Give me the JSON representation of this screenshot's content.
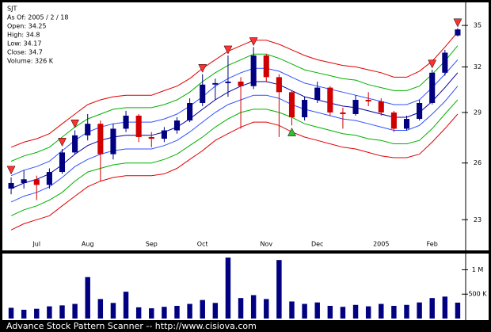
{
  "chart_data": [
    {
      "type": "candlestick",
      "log": true,
      "annotations": [
        "SJT",
        "As Of: 2005 / 2 / 18",
        "Open: 34.25",
        "High: 34.8",
        "Low: 34.17",
        "Close: 34.7",
        "Volume: 326 K"
      ],
      "categories": [
        null,
        null,
        "Jul",
        null,
        null,
        null,
        "Aug",
        null,
        null,
        null,
        null,
        "Sep",
        null,
        null,
        null,
        "Oct",
        null,
        null,
        null,
        null,
        "Nov",
        null,
        null,
        null,
        "Dec",
        null,
        null,
        null,
        null,
        "2005",
        null,
        null,
        null,
        "Feb",
        null,
        null
      ],
      "open": [
        24.6,
        24.9,
        25.1,
        24.8,
        25.5,
        26.6,
        27.6,
        28.3,
        26.5,
        28.0,
        28.8,
        27.5,
        27.4,
        27.9,
        28.5,
        29.6,
        30.8,
        30.9,
        31.0,
        30.7,
        32.8,
        31.3,
        30.3,
        28.7,
        29.8,
        30.6,
        29.0,
        28.9,
        29.8,
        29.7,
        29.0,
        28.0,
        28.6,
        29.6,
        31.6,
        34.25
      ],
      "high": [
        25.2,
        25.6,
        25.3,
        25.7,
        26.8,
        27.9,
        28.9,
        28.5,
        28.3,
        29.1,
        28.9,
        27.8,
        28.1,
        28.7,
        29.9,
        31.5,
        31.2,
        32.8,
        31.3,
        33.4,
        32.9,
        31.5,
        30.4,
        30.0,
        31.0,
        30.7,
        29.3,
        30.1,
        30.3,
        29.9,
        29.1,
        28.8,
        29.8,
        31.8,
        33.2,
        34.8
      ],
      "low": [
        24.3,
        24.6,
        24.0,
        24.6,
        25.4,
        26.5,
        27.3,
        25.0,
        26.2,
        27.8,
        27.2,
        26.9,
        27.2,
        27.7,
        28.4,
        29.4,
        29.8,
        30.0,
        28.0,
        30.5,
        31.0,
        27.5,
        28.2,
        28.5,
        29.6,
        28.8,
        28.0,
        28.8,
        29.4,
        28.8,
        27.8,
        27.9,
        28.5,
        29.5,
        31.4,
        34.17
      ],
      "close": [
        24.9,
        25.1,
        24.8,
        25.5,
        26.6,
        27.6,
        28.3,
        26.5,
        28.0,
        28.8,
        27.5,
        27.4,
        27.9,
        28.5,
        29.6,
        30.8,
        30.9,
        31.0,
        30.7,
        32.8,
        31.3,
        30.3,
        28.7,
        29.8,
        30.6,
        29.0,
        28.9,
        29.8,
        29.7,
        29.0,
        28.0,
        28.6,
        29.6,
        31.6,
        33.0,
        34.7
      ],
      "up_color": "#000080",
      "down_color": "#d00000",
      "bands": [
        {
          "color": "#e00000",
          "values": [
            22.5,
            22.8,
            23.0,
            23.2,
            23.7,
            24.2,
            24.7,
            25.0,
            25.2,
            25.3,
            25.3,
            25.3,
            25.4,
            25.7,
            26.2,
            26.7,
            27.3,
            27.7,
            28.1,
            28.4,
            28.4,
            28.2,
            27.8,
            27.5,
            27.3,
            27.1,
            26.9,
            26.8,
            26.6,
            26.4,
            26.3,
            26.3,
            26.5,
            27.2,
            28.0,
            28.9
          ]
        },
        {
          "color": "#00b000",
          "values": [
            23.2,
            23.5,
            23.7,
            24.0,
            24.4,
            25.0,
            25.5,
            25.7,
            25.9,
            26.0,
            26.0,
            26.0,
            26.2,
            26.5,
            27.0,
            27.5,
            28.1,
            28.6,
            29.0,
            29.2,
            29.2,
            29.0,
            28.7,
            28.3,
            28.1,
            27.9,
            27.7,
            27.6,
            27.4,
            27.3,
            27.1,
            27.1,
            27.3,
            28.0,
            28.9,
            29.8
          ]
        },
        {
          "color": "#3050ff",
          "values": [
            23.9,
            24.2,
            24.4,
            24.7,
            25.2,
            25.8,
            26.2,
            26.5,
            26.7,
            26.8,
            26.8,
            26.8,
            27.0,
            27.3,
            27.8,
            28.4,
            29.0,
            29.5,
            29.8,
            30.1,
            30.1,
            29.9,
            29.5,
            29.2,
            29.0,
            28.8,
            28.6,
            28.5,
            28.3,
            28.1,
            27.9,
            27.9,
            28.2,
            28.9,
            29.7,
            30.7
          ]
        },
        {
          "color": "#0000a0",
          "values": [
            24.6,
            24.9,
            25.1,
            25.4,
            25.9,
            26.5,
            27.0,
            27.3,
            27.5,
            27.6,
            27.6,
            27.6,
            27.8,
            28.1,
            28.6,
            29.2,
            29.8,
            30.3,
            30.7,
            31.0,
            31.0,
            30.8,
            30.4,
            30.0,
            29.8,
            29.6,
            29.4,
            29.3,
            29.1,
            28.9,
            28.7,
            28.7,
            29.0,
            29.7,
            30.6,
            31.6
          ]
        },
        {
          "color": "#3050ff",
          "values": [
            25.3,
            25.6,
            25.8,
            26.1,
            26.7,
            27.3,
            27.8,
            28.1,
            28.3,
            28.4,
            28.4,
            28.4,
            28.6,
            28.9,
            29.4,
            30.0,
            30.7,
            31.2,
            31.6,
            31.9,
            31.9,
            31.7,
            31.3,
            30.9,
            30.7,
            30.5,
            30.3,
            30.1,
            29.9,
            29.7,
            29.5,
            29.5,
            29.8,
            30.6,
            31.5,
            32.5
          ]
        },
        {
          "color": "#00b000",
          "values": [
            26.1,
            26.4,
            26.6,
            26.9,
            27.5,
            28.1,
            28.6,
            28.9,
            29.2,
            29.3,
            29.3,
            29.3,
            29.5,
            29.8,
            30.3,
            31.0,
            31.6,
            32.1,
            32.5,
            32.9,
            32.9,
            32.6,
            32.2,
            31.8,
            31.6,
            31.4,
            31.2,
            31.1,
            30.8,
            30.6,
            30.4,
            30.4,
            30.7,
            31.5,
            32.4,
            33.5
          ]
        },
        {
          "color": "#e00000",
          "values": [
            26.9,
            27.2,
            27.4,
            27.7,
            28.3,
            28.9,
            29.5,
            29.8,
            30.0,
            30.1,
            30.1,
            30.1,
            30.4,
            30.7,
            31.2,
            31.9,
            32.5,
            33.1,
            33.5,
            33.9,
            33.9,
            33.6,
            33.2,
            32.8,
            32.5,
            32.3,
            32.1,
            32.0,
            31.8,
            31.6,
            31.3,
            31.3,
            31.7,
            32.4,
            33.4,
            34.5
          ]
        }
      ],
      "sell_signals": {
        "color": "#ff3030",
        "values": [
          25.6,
          null,
          null,
          null,
          27.2,
          28.3,
          null,
          null,
          null,
          null,
          null,
          null,
          null,
          null,
          null,
          31.9,
          null,
          33.2,
          null,
          33.8,
          null,
          null,
          null,
          null,
          null,
          null,
          null,
          null,
          null,
          null,
          null,
          null,
          null,
          32.2,
          null,
          35.2
        ]
      },
      "buy_signals": {
        "color": "#30c030",
        "values": [
          null,
          null,
          null,
          null,
          null,
          null,
          null,
          null,
          null,
          null,
          null,
          null,
          null,
          null,
          null,
          null,
          null,
          null,
          null,
          null,
          null,
          null,
          27.8,
          null,
          null,
          null,
          null,
          null,
          null,
          null,
          null,
          null,
          null,
          null,
          null,
          null
        ]
      },
      "ylim": [
        21.6,
        36.6
      ],
      "yticks": [
        23,
        26,
        29,
        32,
        35
      ]
    },
    {
      "type": "bar",
      "color": "#000080",
      "values": [
        220000,
        180000,
        200000,
        250000,
        270000,
        300000,
        850000,
        400000,
        320000,
        550000,
        230000,
        210000,
        240000,
        260000,
        300000,
        380000,
        320000,
        1250000,
        420000,
        480000,
        400000,
        1200000,
        350000,
        300000,
        330000,
        260000,
        240000,
        280000,
        250000,
        300000,
        260000,
        280000,
        330000,
        420000,
        450000,
        326000
      ],
      "ylim": [
        0,
        1300000
      ],
      "yticks": [
        {
          "value": 500000,
          "label": "500 K"
        },
        {
          "value": 1000000,
          "label": "1 M"
        }
      ]
    }
  ],
  "footer": "Advance Stock Pattern Scanner -- http://www.cisiova.com"
}
